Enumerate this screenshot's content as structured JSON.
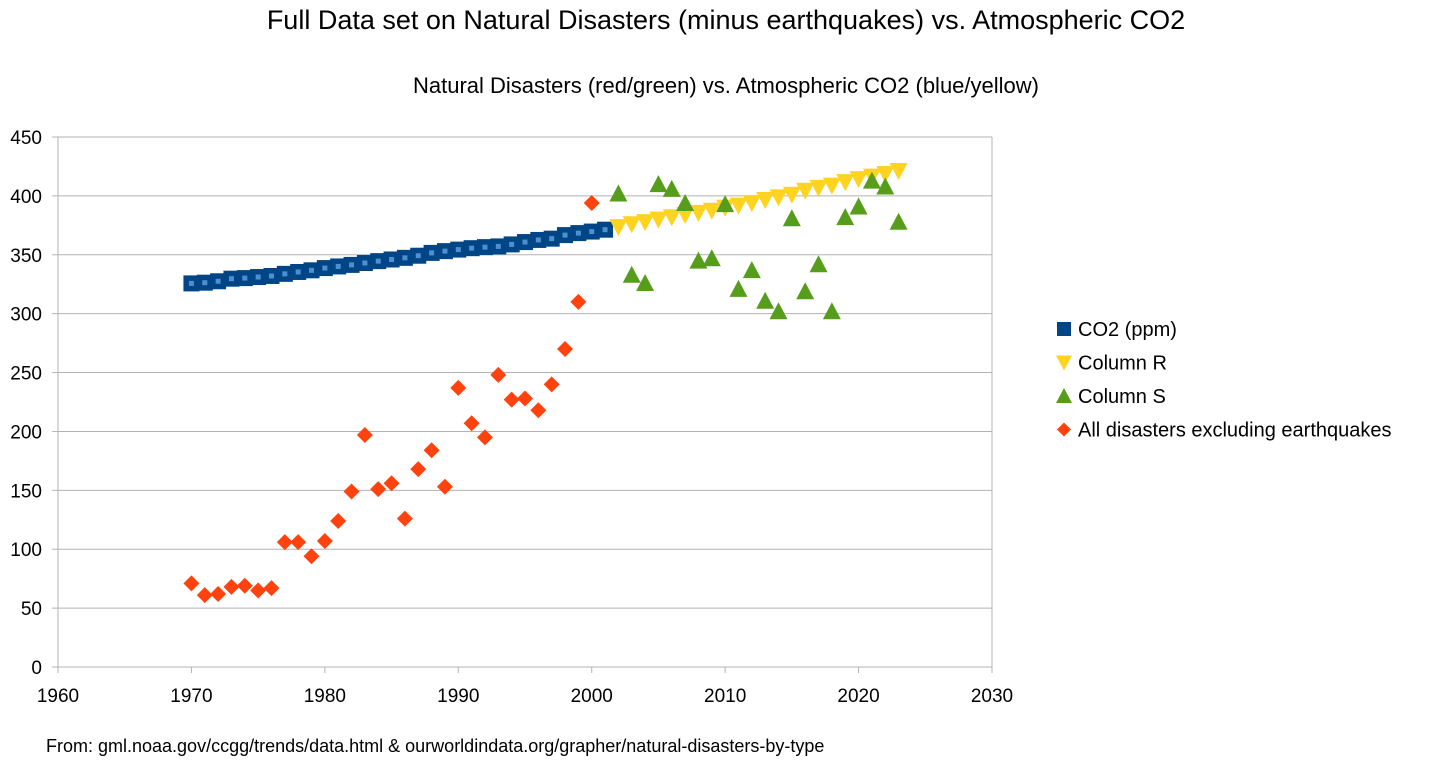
{
  "colors": {
    "co2": "#004586",
    "co2_inner": "#4d8fd1",
    "column_r": "#ffd320",
    "column_s": "#579d1c",
    "disasters": "#ff420e",
    "grid": "#b3b3b3",
    "axis": "#b3b3b3"
  },
  "source_note": "From: gml.noaa.gov/ccgg/trends/data.html & ourworldindata.org/grapher/natural-disasters-by-type",
  "chart_data": {
    "type": "scatter",
    "title": "Full Data set on Natural Disasters (minus earthquakes) vs. Atmospheric CO2",
    "subtitle": "Natural Disasters (red/green) vs. Atmospheric CO2 (blue/yellow)",
    "xlabel": "",
    "ylabel": "",
    "xlim": [
      1960,
      2030
    ],
    "ylim": [
      0,
      450
    ],
    "x_ticks": [
      1960,
      1970,
      1980,
      1990,
      2000,
      2010,
      2020,
      2030
    ],
    "y_ticks": [
      0,
      50,
      100,
      150,
      200,
      250,
      300,
      350,
      400,
      450
    ],
    "grid": "horizontal",
    "legend_position": "right",
    "series": [
      {
        "name": "CO2 (ppm)",
        "marker": "square",
        "points": [
          [
            1970,
            325.7
          ],
          [
            1971,
            326.3
          ],
          [
            1972,
            327.5
          ],
          [
            1973,
            329.7
          ],
          [
            1974,
            330.2
          ],
          [
            1975,
            331.1
          ],
          [
            1976,
            332.0
          ],
          [
            1977,
            333.8
          ],
          [
            1978,
            335.4
          ],
          [
            1979,
            336.8
          ],
          [
            1980,
            338.7
          ],
          [
            1981,
            340.1
          ],
          [
            1982,
            341.4
          ],
          [
            1983,
            343.0
          ],
          [
            1984,
            344.6
          ],
          [
            1985,
            346.0
          ],
          [
            1986,
            347.4
          ],
          [
            1987,
            349.2
          ],
          [
            1988,
            351.6
          ],
          [
            1989,
            353.1
          ],
          [
            1990,
            354.4
          ],
          [
            1991,
            355.6
          ],
          [
            1992,
            356.5
          ],
          [
            1993,
            357.1
          ],
          [
            1994,
            358.8
          ],
          [
            1995,
            360.8
          ],
          [
            1996,
            362.6
          ],
          [
            1997,
            363.7
          ],
          [
            1998,
            366.7
          ],
          [
            1999,
            368.4
          ],
          [
            2000,
            369.7
          ],
          [
            2001,
            371.3
          ]
        ]
      },
      {
        "name": "Column R",
        "marker": "triangle-down",
        "points": [
          [
            2002,
            373.5
          ],
          [
            2003,
            375.9
          ],
          [
            2004,
            377.7
          ],
          [
            2005,
            379.8
          ],
          [
            2006,
            381.9
          ],
          [
            2007,
            383.8
          ],
          [
            2008,
            385.6
          ],
          [
            2009,
            387.4
          ],
          [
            2010,
            389.9
          ],
          [
            2011,
            391.7
          ],
          [
            2012,
            393.9
          ],
          [
            2013,
            396.5
          ],
          [
            2014,
            398.7
          ],
          [
            2015,
            401.0
          ],
          [
            2016,
            404.4
          ],
          [
            2017,
            406.8
          ],
          [
            2018,
            408.7
          ],
          [
            2019,
            411.7
          ],
          [
            2020,
            414.2
          ],
          [
            2021,
            416.4
          ],
          [
            2022,
            418.6
          ],
          [
            2023,
            421.1
          ]
        ]
      },
      {
        "name": "Column S",
        "marker": "triangle-up",
        "points": [
          [
            2002,
            402
          ],
          [
            2003,
            333
          ],
          [
            2004,
            326
          ],
          [
            2005,
            410
          ],
          [
            2006,
            406
          ],
          [
            2007,
            394
          ],
          [
            2008,
            345
          ],
          [
            2009,
            347
          ],
          [
            2010,
            393
          ],
          [
            2011,
            321
          ],
          [
            2012,
            337
          ],
          [
            2013,
            311
          ],
          [
            2014,
            302
          ],
          [
            2015,
            381
          ],
          [
            2016,
            319
          ],
          [
            2017,
            342
          ],
          [
            2018,
            302
          ],
          [
            2019,
            382
          ],
          [
            2020,
            391
          ],
          [
            2021,
            413
          ],
          [
            2022,
            408
          ],
          [
            2023,
            378
          ]
        ]
      },
      {
        "name": "All disasters excluding earthquakes",
        "marker": "diamond",
        "points": [
          [
            1970,
            71
          ],
          [
            1971,
            61
          ],
          [
            1972,
            62
          ],
          [
            1973,
            68
          ],
          [
            1974,
            69
          ],
          [
            1975,
            65
          ],
          [
            1976,
            67
          ],
          [
            1977,
            106
          ],
          [
            1978,
            106
          ],
          [
            1979,
            94
          ],
          [
            1980,
            107
          ],
          [
            1981,
            124
          ],
          [
            1982,
            149
          ],
          [
            1983,
            197
          ],
          [
            1984,
            151
          ],
          [
            1985,
            156
          ],
          [
            1986,
            126
          ],
          [
            1987,
            168
          ],
          [
            1988,
            184
          ],
          [
            1989,
            153
          ],
          [
            1990,
            237
          ],
          [
            1991,
            207
          ],
          [
            1992,
            195
          ],
          [
            1993,
            248
          ],
          [
            1994,
            227
          ],
          [
            1995,
            228
          ],
          [
            1996,
            218
          ],
          [
            1997,
            240
          ],
          [
            1998,
            270
          ],
          [
            1999,
            310
          ],
          [
            2000,
            394
          ]
        ]
      }
    ]
  }
}
